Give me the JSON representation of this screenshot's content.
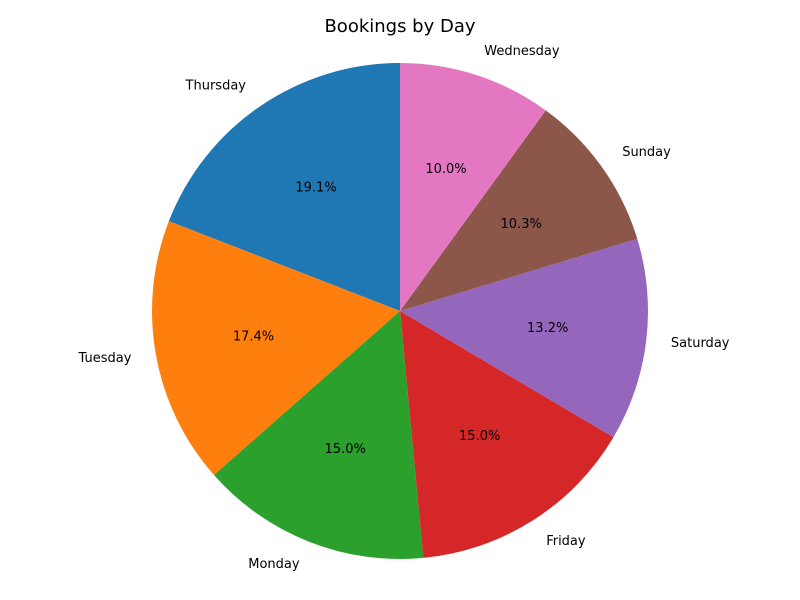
{
  "chart_data": {
    "type": "pie",
    "title": "Bookings by Day",
    "start_angle_deg": 90,
    "direction": "counterclockwise",
    "slices": [
      {
        "label": "Thursday",
        "value": 19.1,
        "pct_label": "19.1%",
        "color": "#1f77b4"
      },
      {
        "label": "Tuesday",
        "value": 17.4,
        "pct_label": "17.4%",
        "color": "#ff7f0e"
      },
      {
        "label": "Monday",
        "value": 15.0,
        "pct_label": "15.0%",
        "color": "#2ca02c"
      },
      {
        "label": "Friday",
        "value": 15.0,
        "pct_label": "15.0%",
        "color": "#d62728"
      },
      {
        "label": "Saturday",
        "value": 13.2,
        "pct_label": "13.2%",
        "color": "#9467bd"
      },
      {
        "label": "Sunday",
        "value": 10.3,
        "pct_label": "10.3%",
        "color": "#8c564b"
      },
      {
        "label": "Wednesday",
        "value": 10.0,
        "pct_label": "10.0%",
        "color": "#e377c2"
      }
    ]
  }
}
